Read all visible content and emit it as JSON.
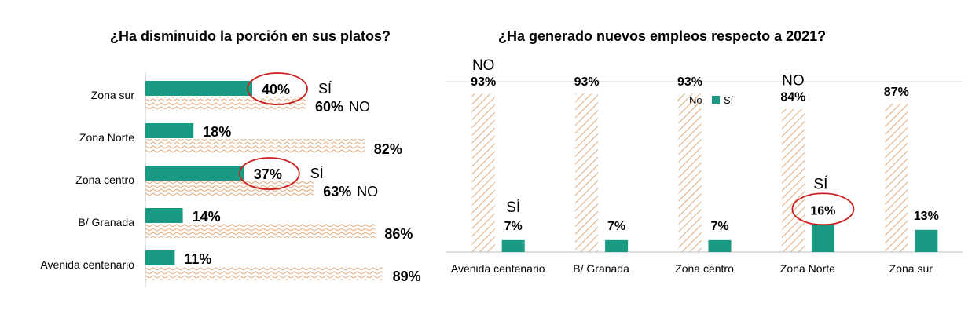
{
  "colors": {
    "si": "#1a9a83",
    "no_pattern": "#e3b78f",
    "highlight_ring": "#cc1f1f",
    "axis": "#bfbfbf",
    "grid": "#d9d9d9"
  },
  "chart_data": [
    {
      "type": "bar",
      "orientation": "horizontal",
      "title": "¿Ha disminuido la porción en sus platos?",
      "categories": [
        "Zona sur",
        "Zona Norte",
        "Zona centro",
        "B/ Granada",
        "Avenida centenario"
      ],
      "series": [
        {
          "name": "SÍ",
          "values": [
            40,
            18,
            37,
            14,
            11
          ],
          "labels": [
            "40%",
            "18%",
            "37%",
            "14%",
            "11%"
          ]
        },
        {
          "name": "NO",
          "values": [
            60,
            82,
            63,
            86,
            89
          ],
          "labels": [
            "60%",
            "82%",
            "63%",
            "86%",
            "89%"
          ]
        }
      ],
      "annotations": [
        {
          "category": "Zona sur",
          "si_text": "SÍ",
          "no_text": "NO",
          "circled": "40%"
        },
        {
          "category": "Zona centro",
          "si_text": "SÍ",
          "no_text": "NO",
          "circled": "37%"
        }
      ],
      "xlim": [
        0,
        100
      ],
      "grid": false,
      "legend": "none"
    },
    {
      "type": "bar",
      "orientation": "vertical",
      "title": "¿Ha generado nuevos empleos respecto a 2021?",
      "categories": [
        "Avenida centenario",
        "B/ Granada",
        "Zona centro",
        "Zona Norte",
        "Zona sur"
      ],
      "series": [
        {
          "name": "No",
          "values": [
            93,
            93,
            93,
            84,
            87
          ],
          "labels": [
            "93%",
            "93%",
            "93%",
            "84%",
            "87%"
          ]
        },
        {
          "name": "Sí",
          "values": [
            7,
            7,
            7,
            16,
            13
          ],
          "labels": [
            "7%",
            "7%",
            "7%",
            "16%",
            "13%"
          ]
        }
      ],
      "annotations": [
        {
          "category": "Avenida centenario",
          "no_text": "NO",
          "si_text": "SÍ"
        },
        {
          "category": "Zona Norte",
          "no_text": "NO",
          "si_text": "SÍ",
          "circled": "16%"
        }
      ],
      "ylim": [
        0,
        100
      ],
      "grid": true,
      "legend": "top-center"
    }
  ]
}
